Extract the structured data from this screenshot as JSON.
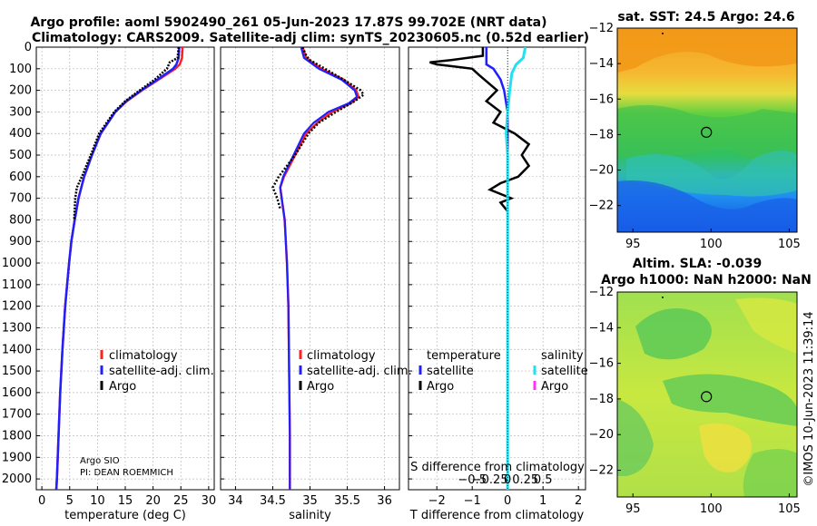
{
  "title": {
    "line1": "Argo profile: aoml 5902490_261 05-Jun-2023 17.87S 99.702E (NRT data)",
    "line2": "Climatology: CARS2009. Satellite-adj clim: synTS_20230605.nc (0.52d earlier)"
  },
  "map_titles": {
    "sst": "sat. SST: 24.5 Argo: 24.6",
    "sla1": "Altim. SLA: -0.039",
    "sla2": "Argo h1000: NaN h2000: NaN"
  },
  "credit": "©IMOS 10-Jun-2023 11:39:14",
  "annotation": {
    "line1": "Argo SIO",
    "line2": "PI: DEAN ROEMMICH"
  },
  "legend_temp": [
    "climatology",
    "satellite-adj. clim.",
    "Argo"
  ],
  "legend_sal": [
    "climatology",
    "satellite-adj. clim.",
    "Argo"
  ],
  "legend_diff": {
    "temp_header": "temperature",
    "sal_header": "salinity",
    "temp_items": [
      "satellite",
      "Argo"
    ],
    "sal_items": [
      "satellite",
      "Argo"
    ]
  },
  "colors": {
    "climatology": "#ff2020",
    "satellite": "#2020ff",
    "argo": "#000000",
    "sal_satellite": "#22e0f0",
    "sal_argo": "#ff30ff"
  },
  "chart_data": [
    {
      "type": "line",
      "name": "temperature",
      "xlabel": "temperature (deg C)",
      "ylabel": "depth",
      "xlim": [
        -1,
        31
      ],
      "ylim": [
        0,
        2050
      ],
      "xticks": [
        0,
        5,
        10,
        15,
        20,
        25,
        30
      ],
      "yticks": [
        0,
        100,
        200,
        300,
        400,
        500,
        600,
        700,
        800,
        900,
        1000,
        1100,
        1200,
        1300,
        1400,
        1500,
        1600,
        1700,
        1800,
        1900,
        2000
      ],
      "series": [
        {
          "name": "climatology",
          "depth": [
            0,
            50,
            80,
            100,
            150,
            200,
            250,
            300,
            400,
            500,
            600,
            700,
            800,
            900,
            1000,
            1200,
            1400,
            1600,
            1800,
            2000,
            2050
          ],
          "values": [
            25.3,
            25.2,
            24.8,
            24.0,
            21.0,
            18.0,
            15.3,
            13.2,
            10.6,
            9.0,
            7.6,
            6.6,
            5.9,
            5.3,
            4.9,
            4.2,
            3.7,
            3.3,
            3.0,
            2.7,
            2.6
          ]
        },
        {
          "name": "satellite-adj. clim.",
          "depth": [
            0,
            50,
            80,
            100,
            150,
            200,
            250,
            300,
            400,
            500,
            600,
            700,
            800,
            900,
            1000,
            1200,
            1400,
            1600,
            1800,
            2000,
            2050
          ],
          "values": [
            24.7,
            24.6,
            24.2,
            23.6,
            20.8,
            17.9,
            15.2,
            13.2,
            10.6,
            9.0,
            7.6,
            6.6,
            5.9,
            5.3,
            4.9,
            4.2,
            3.7,
            3.3,
            3.0,
            2.7,
            2.6
          ]
        },
        {
          "name": "Argo",
          "depth": [
            0,
            50,
            70,
            100,
            150,
            200,
            250,
            300,
            400,
            500,
            600,
            650,
            700,
            800
          ],
          "values": [
            24.6,
            24.4,
            23.0,
            22.5,
            20.3,
            17.6,
            15.0,
            13.0,
            10.3,
            8.8,
            7.2,
            6.3,
            6.0,
            5.8
          ]
        }
      ]
    },
    {
      "type": "line",
      "name": "salinity",
      "xlabel": "salinity",
      "xlim": [
        33.8,
        36.2
      ],
      "ylim": [
        0,
        2050
      ],
      "xticks": [
        34,
        34.5,
        35,
        35.5,
        36
      ],
      "series": [
        {
          "name": "climatology",
          "depth": [
            0,
            50,
            100,
            150,
            200,
            230,
            260,
            300,
            350,
            400,
            500,
            600,
            650,
            700,
            800,
            1000,
            1200,
            1500,
            1800,
            2000,
            2050
          ],
          "values": [
            34.9,
            34.95,
            35.15,
            35.45,
            35.62,
            35.65,
            35.55,
            35.3,
            35.1,
            34.95,
            34.8,
            34.65,
            34.6,
            34.62,
            34.66,
            34.69,
            34.71,
            34.72,
            34.73,
            34.73,
            34.73
          ]
        },
        {
          "name": "satellite-adj. clim.",
          "depth": [
            0,
            50,
            100,
            150,
            200,
            230,
            260,
            300,
            350,
            400,
            500,
            600,
            650,
            700,
            800,
            1000,
            1200,
            1500,
            1800,
            2000,
            2050
          ],
          "values": [
            34.88,
            34.92,
            35.12,
            35.42,
            35.6,
            35.63,
            35.52,
            35.25,
            35.05,
            34.92,
            34.78,
            34.64,
            34.6,
            34.62,
            34.66,
            34.69,
            34.71,
            34.72,
            34.73,
            34.73,
            34.73
          ]
        },
        {
          "name": "Argo",
          "depth": [
            0,
            40,
            60,
            100,
            150,
            200,
            220,
            250,
            300,
            350,
            400,
            500,
            600,
            650,
            700,
            750
          ],
          "values": [
            34.9,
            34.95,
            35.0,
            35.2,
            35.45,
            35.68,
            35.72,
            35.6,
            35.35,
            35.12,
            34.98,
            34.8,
            34.58,
            34.5,
            34.56,
            34.6
          ]
        }
      ]
    },
    {
      "type": "line",
      "name": "difference",
      "xlabel": "T difference from climatology",
      "xlabel_top": "S difference from climatology",
      "xlim": [
        -2.8,
        2.2
      ],
      "ylim": [
        0,
        2050
      ],
      "xticks": [
        -2,
        -1,
        0,
        1,
        2
      ],
      "xticks_top": [
        -0.5,
        -0.25,
        0,
        0.25,
        0.5
      ],
      "series": [
        {
          "name": "T satellite",
          "depth": [
            0,
            50,
            80,
            100,
            150,
            200,
            300,
            400,
            500,
            600,
            700,
            800,
            1000,
            2050
          ],
          "values": [
            -0.6,
            -0.6,
            -0.6,
            -0.4,
            -0.2,
            -0.1,
            0.0,
            0.0,
            0.0,
            0.0,
            0.0,
            0.0,
            0.0,
            0.0
          ]
        },
        {
          "name": "T Argo",
          "depth": [
            0,
            40,
            60,
            70,
            80,
            100,
            130,
            200,
            250,
            300,
            350,
            400,
            450,
            500,
            550,
            600,
            630,
            660,
            700,
            720,
            760
          ],
          "values": [
            -0.7,
            -0.7,
            -1.6,
            -2.2,
            -2.0,
            -1.0,
            -0.8,
            -0.3,
            -0.6,
            -0.2,
            -0.4,
            0.2,
            0.6,
            0.4,
            0.6,
            0.3,
            -0.2,
            -0.5,
            0.1,
            -0.2,
            0.0
          ]
        },
        {
          "name": "S satellite",
          "depth": [
            0,
            50,
            80,
            120,
            200,
            300,
            400,
            500,
            600,
            700,
            800,
            1000,
            2050
          ],
          "values": [
            0.25,
            0.22,
            0.12,
            0.06,
            0.03,
            0.0,
            -0.02,
            0.0,
            0.0,
            0.0,
            0.0,
            0.0,
            0.0
          ]
        },
        {
          "name": "S Argo",
          "depth": [],
          "values": []
        }
      ]
    },
    {
      "type": "heatmap",
      "name": "sst_map",
      "title": "sat. SST: 24.5 Argo: 24.6",
      "xlim": [
        94,
        105.5
      ],
      "ylim": [
        -23.5,
        -12
      ],
      "xticks": [
        95,
        100,
        105
      ],
      "yticks": [
        -12,
        -14,
        -16,
        -18,
        -20,
        -22
      ],
      "argo_position": [
        99.702,
        -17.87
      ]
    },
    {
      "type": "heatmap",
      "name": "sla_map",
      "title": "Argo h1000: NaN h2000: NaN",
      "xlim": [
        94,
        105.5
      ],
      "ylim": [
        -23.5,
        -12
      ],
      "xticks": [
        95,
        100,
        105
      ],
      "yticks": [
        -12,
        -14,
        -16,
        -18,
        -20,
        -22
      ],
      "argo_position": [
        99.702,
        -17.87
      ]
    }
  ]
}
